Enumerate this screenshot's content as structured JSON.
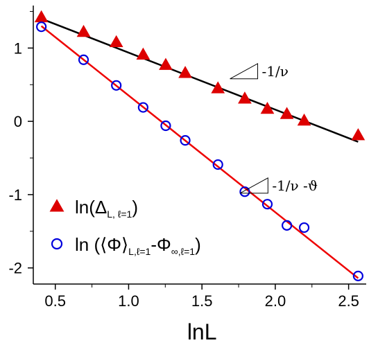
{
  "chart_data": {
    "type": "scatter",
    "xlabel": "lnL",
    "ylabel": "",
    "xlim": [
      0.35,
      2.62
    ],
    "ylim": [
      -2.22,
      1.58
    ],
    "xticks": [
      "0.5",
      "1.0",
      "1.5",
      "2.0",
      "2.5"
    ],
    "yticks": [
      "-2",
      "-1",
      "0",
      "1"
    ],
    "grid": false,
    "legend_position": "bottom-left",
    "series": [
      {
        "marker": "filled-triangle",
        "color": "#dd0000",
        "fit_color": "#000000",
        "legend_main": "ln(Δ",
        "legend_sub": "L, ℓ=1",
        "legend_tail": ")",
        "x": [
          0.405,
          0.693,
          0.916,
          1.099,
          1.253,
          1.386,
          1.609,
          1.792,
          1.946,
          2.079,
          2.197,
          2.565
        ],
        "y": [
          1.42,
          1.22,
          1.08,
          0.91,
          0.77,
          0.66,
          0.45,
          0.31,
          0.17,
          0.1,
          0.01,
          -0.19
        ],
        "fit": {
          "x": [
            0.405,
            2.565
          ],
          "y": [
            1.4,
            -0.28
          ]
        }
      },
      {
        "marker": "open-circle",
        "color": "#0000dd",
        "fit_color": "#ee0000",
        "legend_main": "ln (⟨Φ⟩",
        "legend_sub": "L,ℓ=1",
        "legend_mid": "-Φ",
        "legend_sub2": "∞,ℓ=1",
        "legend_tail": ")",
        "x": [
          0.405,
          0.693,
          0.916,
          1.099,
          1.253,
          1.386,
          1.609,
          1.792,
          1.946,
          2.079,
          2.197,
          2.565
        ],
        "y": [
          1.29,
          0.84,
          0.49,
          0.19,
          -0.06,
          -0.26,
          -0.59,
          -0.96,
          -1.13,
          -1.42,
          -1.45,
          -2.11
        ],
        "fit": {
          "x": [
            0.405,
            2.565
          ],
          "y": [
            1.3,
            -2.14
          ]
        }
      }
    ],
    "annotations": [
      {
        "text": "-1/ν",
        "x": 1.88,
        "y": 0.58
      },
      {
        "text": "-1/ν -ϑ",
        "x": 1.95,
        "y": -0.98
      }
    ]
  }
}
